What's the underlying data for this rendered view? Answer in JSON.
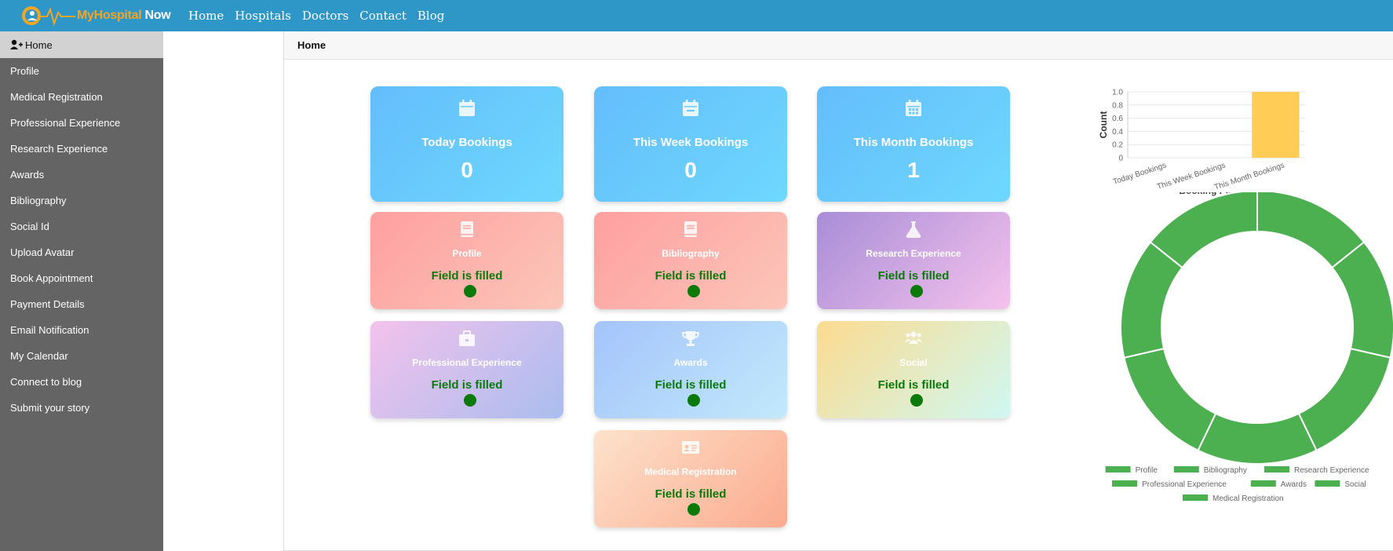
{
  "brand": {
    "logo_text_a": "MyHospital",
    "logo_text_b": "Now"
  },
  "topnav": [
    "Home",
    "Hospitals",
    "Doctors",
    "Contact",
    "Blog"
  ],
  "sidebar": {
    "items": [
      "Home",
      "Profile",
      "Medical Registration",
      "Professional Experience",
      "Research Experience",
      "Awards",
      "Bibliography",
      "Social Id",
      "Upload Avatar",
      "Book Appointment",
      "Payment Details",
      "Email Notification",
      "My Calendar",
      "Connect to blog",
      "Submit your story"
    ],
    "active_index": 0
  },
  "breadcrumb": "Home",
  "stats": [
    {
      "label": "Today Bookings",
      "value": "0"
    },
    {
      "label": "This Week Bookings",
      "value": "0"
    },
    {
      "label": "This Month Bookings",
      "value": "1"
    }
  ],
  "status_cards": [
    {
      "label": "Profile",
      "status": "Field is filled",
      "icon": "book-icon"
    },
    {
      "label": "Bibliography",
      "status": "Field is filled",
      "icon": "book-icon"
    },
    {
      "label": "Research Experience",
      "status": "Field is filled",
      "icon": "flask-icon"
    },
    {
      "label": "Professional Experience",
      "status": "Field is filled",
      "icon": "briefcase-icon"
    },
    {
      "label": "Awards",
      "status": "Field is filled",
      "icon": "trophy-icon"
    },
    {
      "label": "Social",
      "status": "Field is filled",
      "icon": "users-icon"
    },
    {
      "label": "Medical Registration",
      "status": "Field is filled",
      "icon": "id-card-icon"
    }
  ],
  "colors": {
    "topbar": "#2e97c8",
    "sidebar": "#646464",
    "filled": "#0b7a0b",
    "donut": "#4caf50",
    "bar": "#ffcd56"
  },
  "chart_data": [
    {
      "type": "bar",
      "categories": [
        "Today Bookings",
        "This Week Bookings",
        "This Month Bookings"
      ],
      "values": [
        0,
        0,
        1
      ],
      "title": "",
      "xlabel": "",
      "ylabel": "Count",
      "ylim": [
        0,
        1.0
      ],
      "yticks": [
        "0",
        "0.2",
        "0.4",
        "0.6",
        "0.8",
        "1.0"
      ],
      "grid": true
    },
    {
      "type": "pie",
      "title": "Booking Periods",
      "categories": [
        "Profile",
        "Bibliography",
        "Research Experience",
        "Professional Experience",
        "Awards",
        "Social",
        "Medical Registration"
      ],
      "values": [
        1,
        1,
        1,
        1,
        1,
        1,
        1
      ],
      "donut": true,
      "legend": "bottom"
    }
  ]
}
